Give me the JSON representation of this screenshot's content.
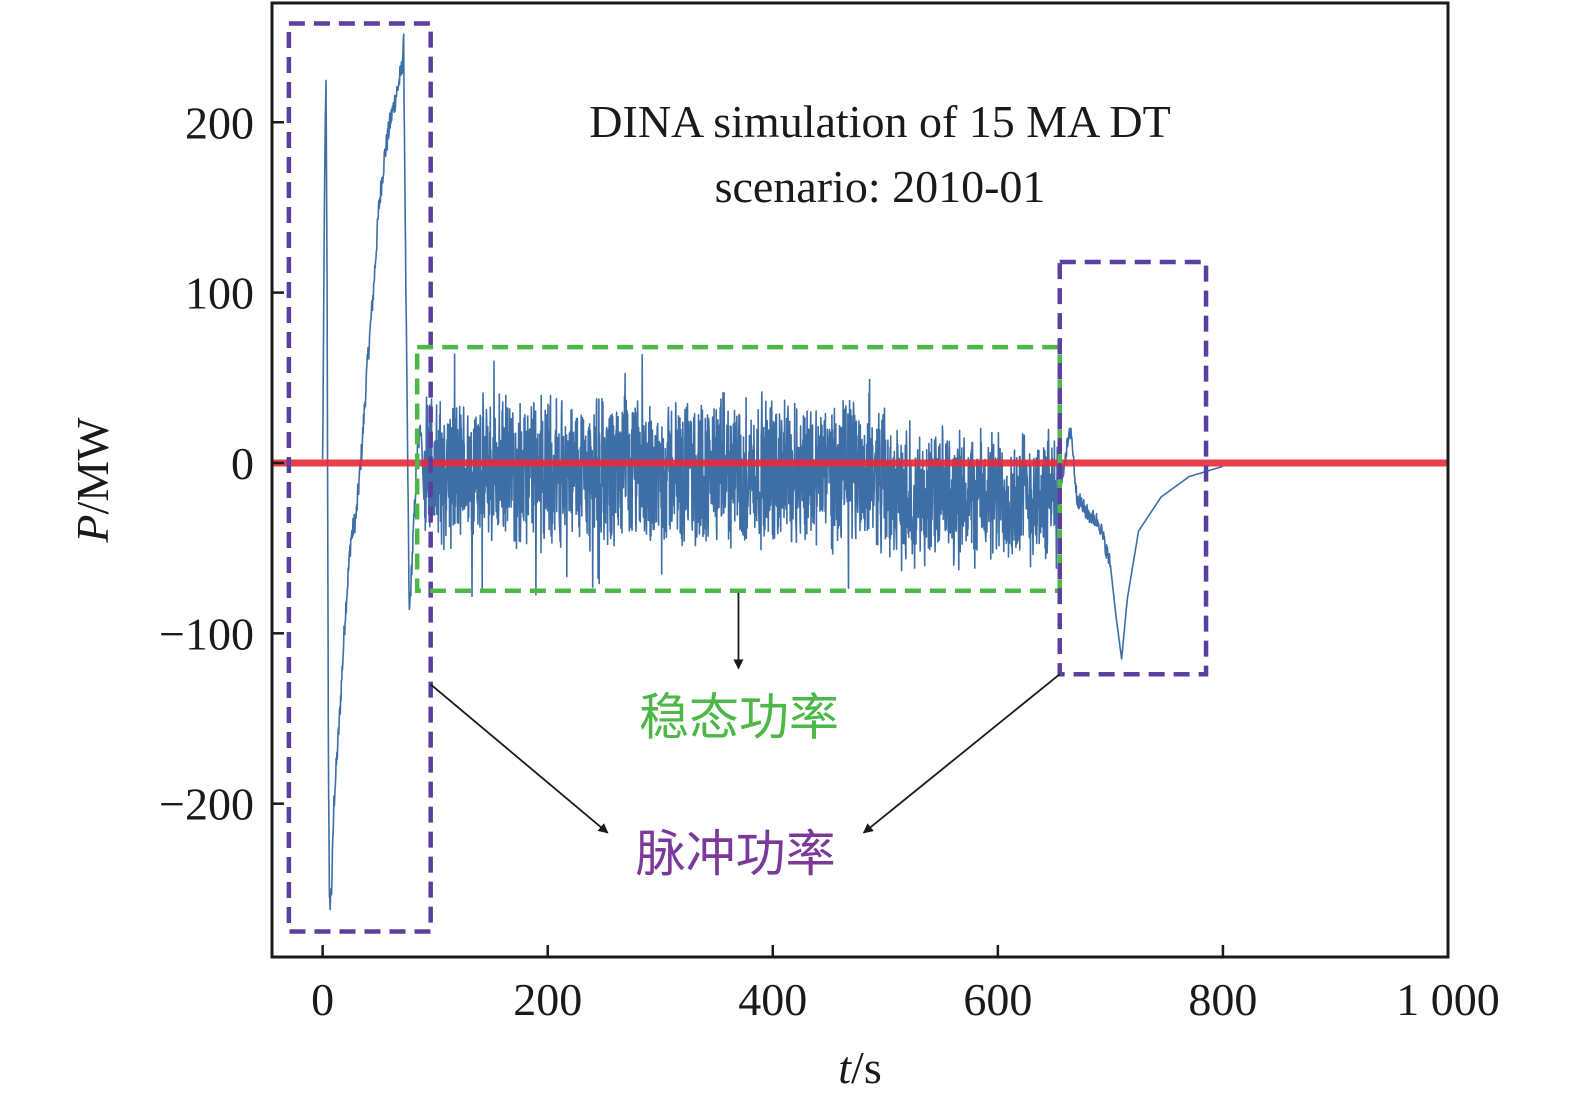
{
  "chart_data": {
    "type": "line",
    "title_lines": [
      "DINA simulation of 15 MA DT",
      "scenario: 2010-01"
    ],
    "xlabel_italic": "t",
    "xlabel_unit": "/s",
    "ylabel_italic": "P",
    "ylabel_unit": "/MW",
    "xlim": [
      -45,
      1000
    ],
    "ylim": [
      -290,
      270
    ],
    "xticks": [
      0,
      200,
      400,
      600,
      800,
      1000
    ],
    "xtick_labels": [
      "0",
      "200",
      "400",
      "600",
      "800",
      "1 000"
    ],
    "yticks": [
      200,
      100,
      0,
      -100,
      -200
    ],
    "ytick_labels": [
      "200",
      "100",
      "0",
      "−100",
      "−200"
    ],
    "zero_line": {
      "y": 0,
      "color": "#e8293a"
    },
    "series": [
      {
        "color": "#3d6fa6",
        "segments": [
          {
            "type": "pulse",
            "points": [
              [
                0,
                0
              ],
              [
                2,
                185
              ],
              [
                3,
                220
              ],
              [
                4,
                100
              ],
              [
                5,
                -150
              ],
              [
                6,
                -260
              ],
              [
                8,
                -250
              ],
              [
                10,
                -200
              ],
              [
                15,
                -150
              ],
              [
                20,
                -90
              ],
              [
                25,
                -45
              ],
              [
                30,
                -30
              ],
              [
                35,
                10
              ],
              [
                40,
                60
              ],
              [
                45,
                100
              ],
              [
                50,
                150
              ],
              [
                55,
                180
              ],
              [
                60,
                200
              ],
              [
                65,
                215
              ],
              [
                70,
                230
              ],
              [
                72,
                245
              ],
              [
                74,
                100
              ],
              [
                77,
                -90
              ],
              [
                80,
                -50
              ],
              [
                84,
                5
              ],
              [
                88,
                25
              ]
            ]
          },
          {
            "type": "noise",
            "t_start": 90,
            "t_end": 500,
            "mean": -5,
            "amplitude": 50
          },
          {
            "type": "noise",
            "t_start": 500,
            "t_end": 655,
            "mean": -20,
            "amplitude": 45
          },
          {
            "type": "pulse",
            "points": [
              [
                655,
                -20
              ],
              [
                660,
                5
              ],
              [
                665,
                20
              ],
              [
                670,
                -20
              ],
              [
                680,
                -30
              ],
              [
                690,
                -35
              ],
              [
                700,
                -60
              ],
              [
                705,
                -90
              ],
              [
                710,
                -115
              ],
              [
                715,
                -80
              ],
              [
                725,
                -40
              ],
              [
                745,
                -20
              ],
              [
                770,
                -8
              ],
              [
                800,
                -2
              ]
            ]
          }
        ]
      }
    ],
    "boxes": [
      {
        "kind": "pulse",
        "color": "#5b3fa0",
        "x0": -30,
        "x1": 96,
        "y0": -275,
        "y1": 258
      },
      {
        "kind": "steady",
        "color": "#4db848",
        "x0": 84,
        "x1": 655,
        "y0": -75,
        "y1": 68
      },
      {
        "kind": "pulse",
        "color": "#5b3fa0",
        "x0": 655,
        "x1": 785,
        "y0": -124,
        "y1": 118
      }
    ],
    "annotations": [
      {
        "text": "稳态功率",
        "color": "#4db848",
        "x": 370,
        "y": -150
      },
      {
        "text": "脉冲功率",
        "color": "#7b3a99",
        "x": 367,
        "y": -230
      }
    ]
  }
}
